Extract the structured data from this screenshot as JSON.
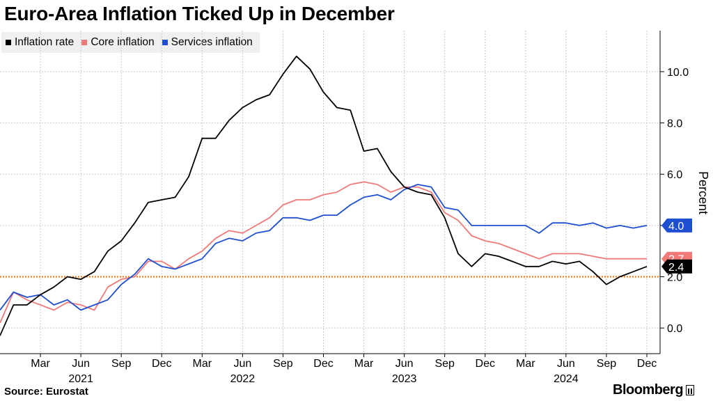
{
  "title": "Euro-Area Inflation Ticked Up in December",
  "source": "Source: Eurostat",
  "brand": "Bloomberg",
  "chart_data": {
    "type": "line",
    "title": "Euro-Area Inflation Ticked Up in December",
    "ylabel": "Percent",
    "ylim": [
      -1.0,
      11.6
    ],
    "yticks": [
      0.0,
      2.0,
      4.0,
      6.0,
      8.0,
      10.0
    ],
    "ytick_labels": [
      "0.0",
      "2.0",
      "4.0",
      "6.0",
      "8.0",
      "10.0"
    ],
    "grid": true,
    "legend_position": "top-left",
    "x_start": "2020-12",
    "x_end": "2024-12",
    "x": [
      "2020-12",
      "2021-01",
      "2021-02",
      "2021-03",
      "2021-04",
      "2021-05",
      "2021-06",
      "2021-07",
      "2021-08",
      "2021-09",
      "2021-10",
      "2021-11",
      "2021-12",
      "2022-01",
      "2022-02",
      "2022-03",
      "2022-04",
      "2022-05",
      "2022-06",
      "2022-07",
      "2022-08",
      "2022-09",
      "2022-10",
      "2022-11",
      "2022-12",
      "2023-01",
      "2023-02",
      "2023-03",
      "2023-04",
      "2023-05",
      "2023-06",
      "2023-07",
      "2023-08",
      "2023-09",
      "2023-10",
      "2023-11",
      "2023-12",
      "2024-01",
      "2024-02",
      "2024-03",
      "2024-04",
      "2024-05",
      "2024-06",
      "2024-07",
      "2024-08",
      "2024-09",
      "2024-10",
      "2024-11",
      "2024-12"
    ],
    "month_ticks": [
      {
        "date": "2021-03",
        "label": "Mar"
      },
      {
        "date": "2021-06",
        "label": "Jun"
      },
      {
        "date": "2021-09",
        "label": "Sep"
      },
      {
        "date": "2021-12",
        "label": "Dec"
      },
      {
        "date": "2022-03",
        "label": "Mar"
      },
      {
        "date": "2022-06",
        "label": "Jun"
      },
      {
        "date": "2022-09",
        "label": "Sep"
      },
      {
        "date": "2022-12",
        "label": "Dec"
      },
      {
        "date": "2023-03",
        "label": "Mar"
      },
      {
        "date": "2023-06",
        "label": "Jun"
      },
      {
        "date": "2023-09",
        "label": "Sep"
      },
      {
        "date": "2023-12",
        "label": "Dec"
      },
      {
        "date": "2024-03",
        "label": "Mar"
      },
      {
        "date": "2024-06",
        "label": "Jun"
      },
      {
        "date": "2024-09",
        "label": "Sep"
      },
      {
        "date": "2024-12",
        "label": "Dec"
      }
    ],
    "year_ticks": [
      {
        "date": "2021-06",
        "label": "2021"
      },
      {
        "date": "2022-06",
        "label": "2022"
      },
      {
        "date": "2023-06",
        "label": "2023"
      },
      {
        "date": "2024-06",
        "label": "2024"
      }
    ],
    "reference_line": {
      "value": 2.0,
      "color": "#e8741e"
    },
    "series": [
      {
        "name": "Inflation rate",
        "color": "#000000",
        "end_label": "2.4",
        "values": [
          -0.3,
          0.9,
          0.9,
          1.3,
          1.6,
          2.0,
          1.9,
          2.2,
          3.0,
          3.4,
          4.1,
          4.9,
          5.0,
          5.1,
          5.9,
          7.4,
          7.4,
          8.1,
          8.6,
          8.9,
          9.1,
          9.9,
          10.6,
          10.1,
          9.2,
          8.6,
          8.5,
          6.9,
          7.0,
          6.1,
          5.5,
          5.3,
          5.2,
          4.3,
          2.9,
          2.4,
          2.9,
          2.8,
          2.6,
          2.4,
          2.4,
          2.6,
          2.5,
          2.6,
          2.2,
          1.7,
          2.0,
          2.2,
          2.4
        ]
      },
      {
        "name": "Core inflation",
        "color": "#f07a78",
        "end_label": "2.7",
        "values": [
          0.2,
          1.4,
          1.1,
          0.9,
          0.7,
          1.0,
          0.9,
          0.7,
          1.6,
          1.9,
          2.0,
          2.6,
          2.6,
          2.3,
          2.7,
          3.0,
          3.5,
          3.8,
          3.7,
          4.0,
          4.3,
          4.8,
          5.0,
          5.0,
          5.2,
          5.3,
          5.6,
          5.7,
          5.6,
          5.3,
          5.5,
          5.5,
          5.3,
          4.5,
          4.2,
          3.6,
          3.4,
          3.3,
          3.1,
          2.9,
          2.7,
          2.9,
          2.9,
          2.9,
          2.8,
          2.7,
          2.7,
          2.7,
          2.7
        ]
      },
      {
        "name": "Services inflation",
        "color": "#1f4fd1",
        "end_label": "4.0",
        "values": [
          0.7,
          1.4,
          1.2,
          1.3,
          0.9,
          1.1,
          0.7,
          0.9,
          1.1,
          1.7,
          2.1,
          2.7,
          2.4,
          2.3,
          2.5,
          2.7,
          3.3,
          3.5,
          3.4,
          3.7,
          3.8,
          4.3,
          4.3,
          4.2,
          4.4,
          4.4,
          4.8,
          5.1,
          5.2,
          5.0,
          5.4,
          5.6,
          5.5,
          4.7,
          4.6,
          4.0,
          4.0,
          4.0,
          4.0,
          4.0,
          3.7,
          4.1,
          4.1,
          4.0,
          4.1,
          3.9,
          4.0,
          3.9,
          4.0
        ]
      }
    ]
  }
}
